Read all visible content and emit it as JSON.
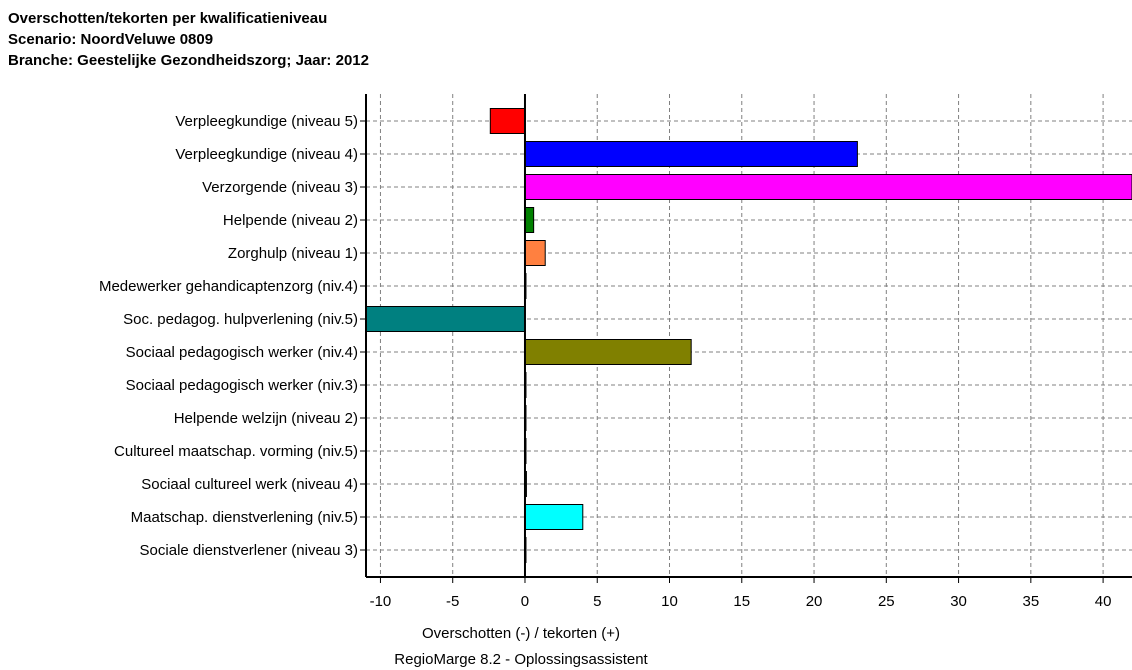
{
  "title_lines": [
    "Overschotten/tekorten per kwalificatieniveau",
    "Scenario: NoordVeluwe 0809",
    "Branche: Geestelijke Gezondheidszorg; Jaar: 2012"
  ],
  "footer": {
    "credit": "RegioMarge 8.2 - Oplossingsassistent"
  },
  "chart_data": {
    "type": "bar",
    "orientation": "horizontal",
    "xlabel": "Overschotten (-) / tekorten (+)",
    "xlim": [
      -11,
      42
    ],
    "xticks": [
      -10,
      -5,
      0,
      5,
      10,
      15,
      20,
      25,
      30,
      35,
      40
    ],
    "grid": true,
    "categories": [
      "Verpleegkundige (niveau 5)",
      "Verpleegkundige (niveau 4)",
      "Verzorgende (niveau 3)",
      "Helpende (niveau 2)",
      "Zorghulp (niveau 1)",
      "Medewerker gehandicaptenzorg (niv.4)",
      "Soc. pedagog. hulpverlening (niv.5)",
      "Sociaal pedagogisch werker (niv.4)",
      "Sociaal pedagogisch werker (niv.3)",
      "Helpende welzijn (niveau 2)",
      "Cultureel maatschap. vorming (niv.5)",
      "Sociaal cultureel werk (niveau 4)",
      "Maatschap. dienstverlening (niv.5)",
      "Sociale dienstverlener (niveau 3)"
    ],
    "values": [
      -2.4,
      23.0,
      42.0,
      0.6,
      1.4,
      0.05,
      -11.0,
      11.5,
      0.05,
      0.05,
      0.05,
      0.1,
      4.0,
      0.05
    ],
    "colors": [
      "#ff0000",
      "#0000ff",
      "#ff00ff",
      "#008000",
      "#ff8040",
      "#800000",
      "#008080",
      "#808000",
      "#808080",
      "#000080",
      "#800080",
      "#00ff00",
      "#00ffff",
      "#c0c0c0"
    ]
  }
}
